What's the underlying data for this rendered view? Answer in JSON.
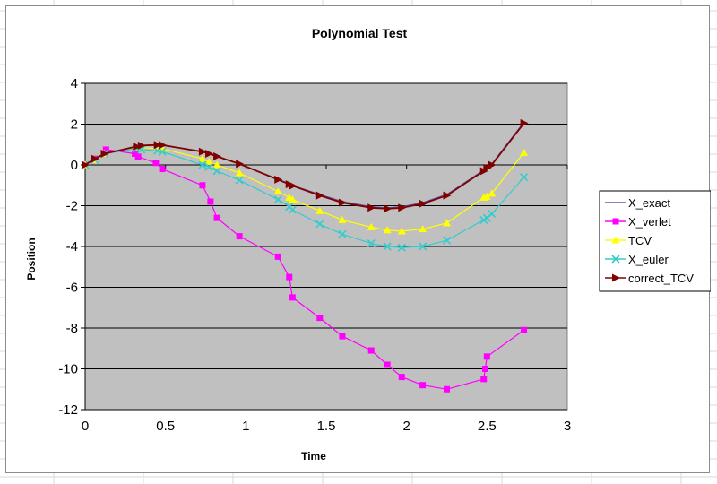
{
  "chart_data": {
    "type": "line",
    "title": "Polynomial Test",
    "xlabel": "Time",
    "ylabel": "Position",
    "xlim": [
      0,
      3
    ],
    "ylim": [
      -12,
      4
    ],
    "x_ticks": [
      0,
      0.5,
      1,
      1.5,
      2,
      2.5,
      3
    ],
    "y_ticks": [
      4,
      2,
      0,
      -2,
      -4,
      -6,
      -8,
      -10,
      -12
    ],
    "x_tick_labels": [
      "0",
      "0.5",
      "1",
      "1.5",
      "2",
      "2.5",
      "3"
    ],
    "y_tick_labels": [
      "4",
      "2",
      "0",
      "-2",
      "-4",
      "-6",
      "-8",
      "-10",
      "-12"
    ],
    "grid": "horizontal",
    "legend_position": "right",
    "plot_background": "#c0c0c0",
    "series": [
      {
        "name": "X_exact",
        "color": "#5a5ab4",
        "marker": "none",
        "x": [
          0,
          0.06,
          0.12,
          0.32,
          0.35,
          0.45,
          0.48,
          0.73,
          0.77,
          0.82,
          0.96,
          1.2,
          1.27,
          1.29,
          1.46,
          1.6,
          1.78,
          1.88,
          1.97,
          2.1,
          2.25,
          2.48,
          2.5,
          2.53,
          2.73
        ],
        "y": [
          0,
          0.3,
          0.55,
          0.93,
          0.96,
          1.0,
          0.99,
          0.63,
          0.54,
          0.4,
          0.05,
          -0.7,
          -0.92,
          -1.0,
          -1.45,
          -1.8,
          -2.05,
          -2.1,
          -2.05,
          -1.85,
          -1.45,
          -0.25,
          -0.12,
          0.05,
          2.1
        ]
      },
      {
        "name": "X_verlet",
        "color": "#ff00ff",
        "marker": "square",
        "x": [
          0,
          0.06,
          0.12,
          0.13,
          0.31,
          0.33,
          0.44,
          0.48,
          0.73,
          0.78,
          0.82,
          0.96,
          1.2,
          1.27,
          1.29,
          1.46,
          1.6,
          1.78,
          1.88,
          1.97,
          2.1,
          2.25,
          2.48,
          2.49,
          2.5,
          2.73
        ],
        "y": [
          0,
          0.3,
          0.55,
          0.75,
          0.55,
          0.4,
          0.1,
          -0.2,
          -1.0,
          -1.8,
          -2.6,
          -3.5,
          -4.5,
          -5.5,
          -6.5,
          -7.5,
          -8.4,
          -9.1,
          -9.8,
          -10.4,
          -10.8,
          -11.0,
          -10.5,
          -10.0,
          -9.4,
          -8.1
        ]
      },
      {
        "name": "TCV",
        "color": "#ffff00",
        "marker": "triangle",
        "x": [
          0,
          0.06,
          0.12,
          0.32,
          0.35,
          0.45,
          0.48,
          0.73,
          0.77,
          0.82,
          0.96,
          1.2,
          1.27,
          1.29,
          1.46,
          1.6,
          1.78,
          1.88,
          1.97,
          2.1,
          2.25,
          2.48,
          2.5,
          2.53,
          2.73
        ],
        "y": [
          0,
          0.25,
          0.55,
          0.85,
          0.85,
          0.8,
          0.8,
          0.3,
          0.15,
          0.0,
          -0.4,
          -1.3,
          -1.6,
          -1.7,
          -2.25,
          -2.7,
          -3.05,
          -3.2,
          -3.25,
          -3.15,
          -2.85,
          -1.6,
          -1.55,
          -1.4,
          0.6
        ]
      },
      {
        "name": "X_euler",
        "color": "#33cccc",
        "marker": "x",
        "x": [
          0,
          0.06,
          0.12,
          0.32,
          0.35,
          0.45,
          0.48,
          0.73,
          0.77,
          0.82,
          0.96,
          1.2,
          1.27,
          1.29,
          1.46,
          1.6,
          1.78,
          1.88,
          1.97,
          2.1,
          2.25,
          2.48,
          2.5,
          2.53,
          2.73
        ],
        "y": [
          0,
          0.25,
          0.55,
          0.8,
          0.75,
          0.7,
          0.65,
          0.0,
          -0.1,
          -0.3,
          -0.75,
          -1.7,
          -2.05,
          -2.2,
          -2.9,
          -3.4,
          -3.85,
          -4.0,
          -4.05,
          -4.0,
          -3.7,
          -2.7,
          -2.6,
          -2.4,
          -0.6
        ]
      },
      {
        "name": "correct_TCV",
        "color": "#800000",
        "marker": "triangle-right",
        "x": [
          0,
          0.06,
          0.12,
          0.32,
          0.35,
          0.45,
          0.48,
          0.73,
          0.77,
          0.82,
          0.96,
          1.2,
          1.27,
          1.29,
          1.46,
          1.6,
          1.78,
          1.88,
          1.97,
          2.1,
          2.25,
          2.48,
          2.5,
          2.53,
          2.73
        ],
        "y": [
          0,
          0.3,
          0.55,
          0.9,
          0.95,
          0.98,
          0.97,
          0.65,
          0.55,
          0.42,
          0.05,
          -0.72,
          -0.95,
          -1.02,
          -1.5,
          -1.85,
          -2.1,
          -2.15,
          -2.1,
          -1.9,
          -1.5,
          -0.3,
          -0.15,
          0.0,
          2.05
        ]
      }
    ]
  }
}
